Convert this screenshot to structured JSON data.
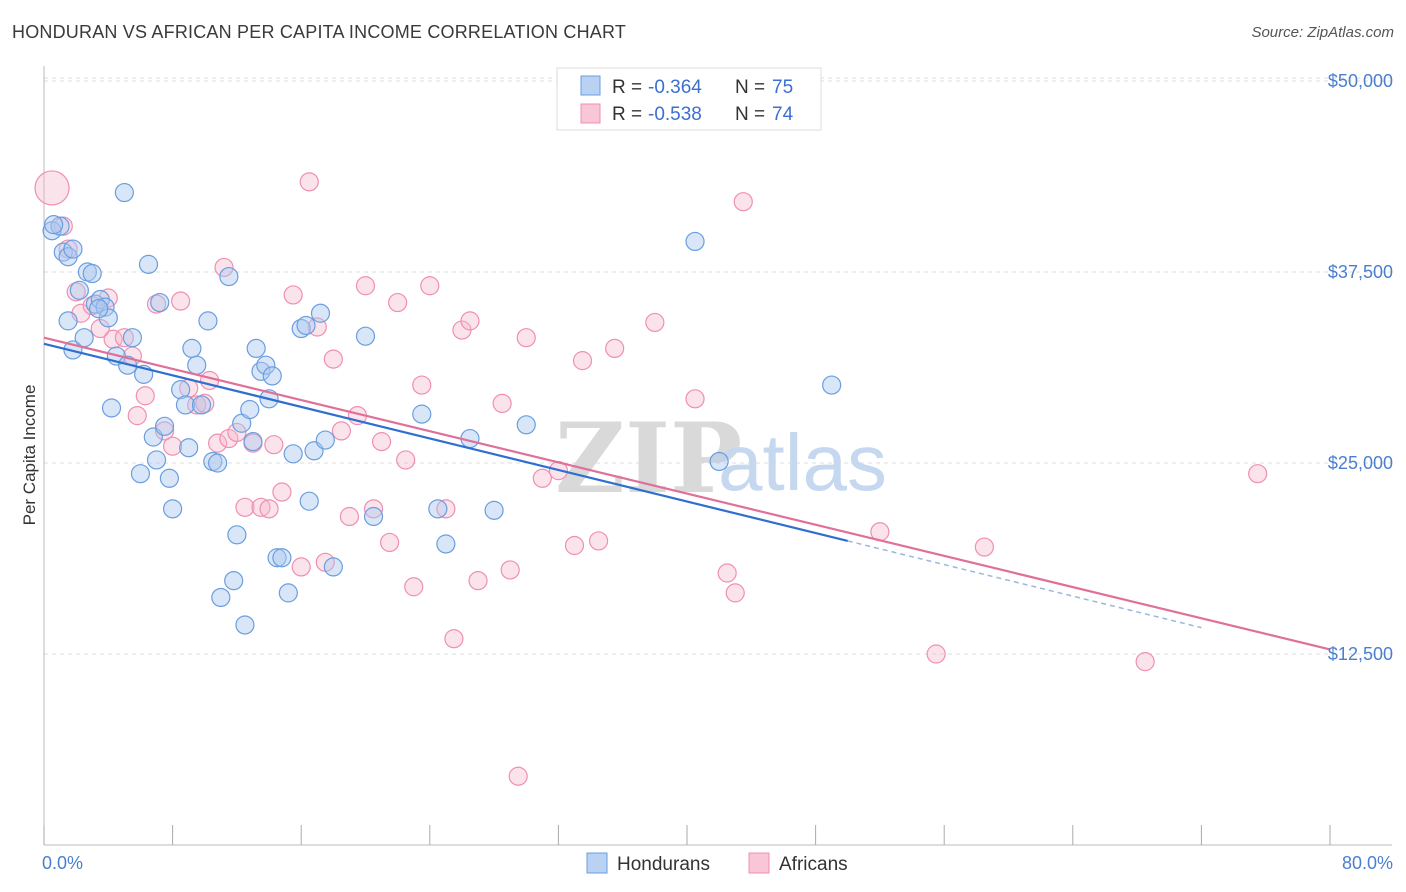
{
  "title": "HONDURAN VS AFRICAN PER CAPITA INCOME CORRELATION CHART",
  "source": "Source: ZipAtlas.com",
  "watermark": {
    "part1": "ZIP",
    "part2": "atlas"
  },
  "legend": {
    "rows": [
      {
        "r_label": "R =",
        "r_value": "-0.364",
        "n_label": "N =",
        "n_value": "75"
      },
      {
        "r_label": "R =",
        "r_value": "-0.538",
        "n_label": "N =",
        "n_value": "74"
      }
    ]
  },
  "bottom_legend": [
    "Hondurans",
    "Africans"
  ],
  "chart_data": {
    "type": "scatter",
    "title": "HONDURAN VS AFRICAN PER CAPITA INCOME CORRELATION CHART",
    "xlabel": "",
    "ylabel": "Per Capita Income",
    "xlim": [
      0,
      80
    ],
    "ylim": [
      0,
      52000
    ],
    "x_tick_labels": [
      "0.0%",
      "80.0%"
    ],
    "y_ticks": [
      12500,
      25000,
      37500,
      50000
    ],
    "y_tick_labels": [
      "$12,500",
      "$25,000",
      "$37,500",
      "$50,000"
    ],
    "grid": true,
    "legend_position": "top-center",
    "colors": {
      "Hondurans": "#6a9ee0",
      "Africans": "#f08fb0",
      "honduran_line": "#2f6fd0",
      "african_line": "#e07098"
    },
    "series": [
      {
        "name": "Hondurans",
        "trend": {
          "x": [
            0,
            50
          ],
          "y": [
            32800,
            19900
          ]
        },
        "points": [
          [
            0.5,
            40200
          ],
          [
            1.2,
            38800
          ],
          [
            1.0,
            40500
          ],
          [
            1.5,
            38500
          ],
          [
            1.8,
            32400
          ],
          [
            1.5,
            34300
          ],
          [
            2.2,
            36300
          ],
          [
            2.5,
            33200
          ],
          [
            2.7,
            37500
          ],
          [
            3.0,
            37400
          ],
          [
            3.2,
            35400
          ],
          [
            3.5,
            35700
          ],
          [
            3.8,
            35200
          ],
          [
            4.0,
            34500
          ],
          [
            4.2,
            28600
          ],
          [
            4.5,
            32000
          ],
          [
            5.0,
            42700
          ],
          [
            5.2,
            31400
          ],
          [
            5.5,
            33200
          ],
          [
            6.2,
            30800
          ],
          [
            6.0,
            24300
          ],
          [
            6.5,
            38000
          ],
          [
            6.8,
            26700
          ],
          [
            7.0,
            25200
          ],
          [
            7.2,
            35500
          ],
          [
            7.5,
            27400
          ],
          [
            7.8,
            24000
          ],
          [
            8.0,
            22000
          ],
          [
            8.5,
            29800
          ],
          [
            8.8,
            28800
          ],
          [
            9.0,
            26000
          ],
          [
            9.2,
            32500
          ],
          [
            9.5,
            31400
          ],
          [
            9.8,
            28800
          ],
          [
            10.2,
            34300
          ],
          [
            10.5,
            25100
          ],
          [
            10.8,
            25000
          ],
          [
            11.0,
            16200
          ],
          [
            11.5,
            37200
          ],
          [
            11.8,
            17300
          ],
          [
            12.0,
            20300
          ],
          [
            12.3,
            27600
          ],
          [
            12.5,
            14400
          ],
          [
            12.8,
            28500
          ],
          [
            13.0,
            26400
          ],
          [
            13.2,
            32500
          ],
          [
            13.5,
            31000
          ],
          [
            13.8,
            31400
          ],
          [
            14.0,
            29200
          ],
          [
            14.2,
            30700
          ],
          [
            14.5,
            18800
          ],
          [
            14.8,
            18800
          ],
          [
            15.2,
            16500
          ],
          [
            15.5,
            25600
          ],
          [
            16.0,
            33800
          ],
          [
            16.3,
            34000
          ],
          [
            16.5,
            22500
          ],
          [
            16.8,
            25800
          ],
          [
            17.2,
            34800
          ],
          [
            17.5,
            26500
          ],
          [
            18.0,
            18200
          ],
          [
            20.0,
            33300
          ],
          [
            20.5,
            21500
          ],
          [
            23.5,
            28200
          ],
          [
            24.5,
            22000
          ],
          [
            25.0,
            19700
          ],
          [
            26.5,
            26600
          ],
          [
            28.0,
            21900
          ],
          [
            30.0,
            27500
          ],
          [
            40.5,
            39500
          ],
          [
            42.0,
            25100
          ],
          [
            49.0,
            30100
          ],
          [
            0.6,
            40600
          ],
          [
            1.8,
            39000
          ],
          [
            3.4,
            35100
          ]
        ]
      },
      {
        "name": "Africans",
        "trend": {
          "x": [
            0,
            80
          ],
          "y": [
            33200,
            12800
          ]
        },
        "points": [
          [
            0.5,
            43000
          ],
          [
            1.2,
            40500
          ],
          [
            1.5,
            39000
          ],
          [
            2.0,
            36200
          ],
          [
            2.3,
            34800
          ],
          [
            3.0,
            35300
          ],
          [
            3.5,
            33800
          ],
          [
            4.0,
            35800
          ],
          [
            4.3,
            33100
          ],
          [
            5.0,
            33200
          ],
          [
            5.5,
            32000
          ],
          [
            5.8,
            28100
          ],
          [
            6.3,
            29400
          ],
          [
            7.0,
            35400
          ],
          [
            7.5,
            27100
          ],
          [
            8.0,
            26100
          ],
          [
            8.5,
            35600
          ],
          [
            9.0,
            29900
          ],
          [
            9.5,
            28800
          ],
          [
            10.0,
            28900
          ],
          [
            10.3,
            30400
          ],
          [
            10.8,
            26300
          ],
          [
            11.2,
            37800
          ],
          [
            11.5,
            26600
          ],
          [
            12.0,
            27000
          ],
          [
            12.5,
            22100
          ],
          [
            13.0,
            26300
          ],
          [
            13.5,
            22100
          ],
          [
            14.0,
            22000
          ],
          [
            14.3,
            26200
          ],
          [
            14.8,
            23100
          ],
          [
            15.5,
            36000
          ],
          [
            16.0,
            18200
          ],
          [
            16.5,
            43400
          ],
          [
            17.0,
            33900
          ],
          [
            17.5,
            18500
          ],
          [
            18.0,
            31800
          ],
          [
            18.5,
            27100
          ],
          [
            19.0,
            21500
          ],
          [
            19.5,
            28100
          ],
          [
            20.0,
            36600
          ],
          [
            20.5,
            22000
          ],
          [
            21.0,
            26400
          ],
          [
            21.5,
            19800
          ],
          [
            22.0,
            35500
          ],
          [
            22.5,
            25200
          ],
          [
            23.0,
            16900
          ],
          [
            23.5,
            30100
          ],
          [
            24.0,
            36600
          ],
          [
            25.0,
            22000
          ],
          [
            25.5,
            13500
          ],
          [
            26.0,
            33700
          ],
          [
            26.5,
            34300
          ],
          [
            27.0,
            17300
          ],
          [
            28.5,
            28900
          ],
          [
            29.0,
            18000
          ],
          [
            29.5,
            4500
          ],
          [
            30.0,
            33200
          ],
          [
            31.0,
            24000
          ],
          [
            32.0,
            24500
          ],
          [
            33.0,
            19600
          ],
          [
            33.5,
            31700
          ],
          [
            34.5,
            19900
          ],
          [
            35.5,
            32500
          ],
          [
            38.0,
            34200
          ],
          [
            40.5,
            29200
          ],
          [
            42.5,
            17800
          ],
          [
            43.0,
            16500
          ],
          [
            43.5,
            42100
          ],
          [
            52.0,
            20500
          ],
          [
            55.5,
            12500
          ],
          [
            58.5,
            19500
          ],
          [
            68.5,
            12000
          ],
          [
            75.5,
            24300
          ]
        ]
      }
    ]
  }
}
